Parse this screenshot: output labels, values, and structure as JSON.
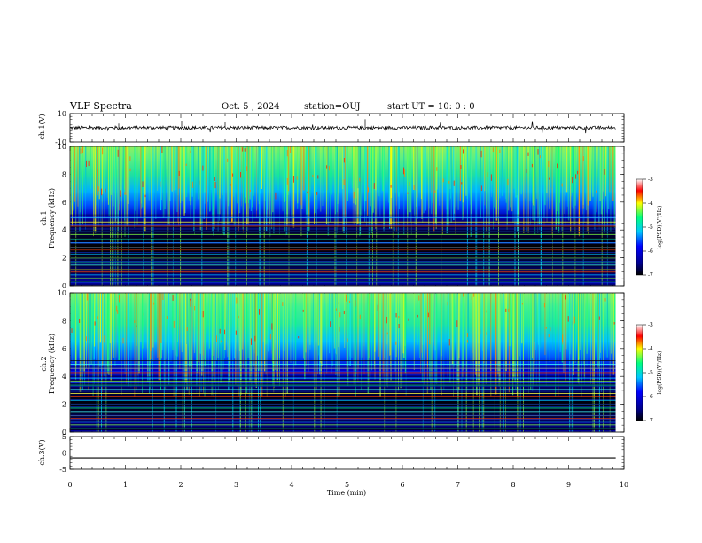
{
  "header": {
    "title": "VLF Spectra",
    "date": "Oct. 5  , 2024",
    "station": "station=OUJ",
    "start": "start  UT  =   10: 0  : 0"
  },
  "colors": {
    "background_low": "#000000",
    "low": "#00008b",
    "mid": "#0000ff",
    "cyan": "#00c8ff",
    "green": "#00ff80",
    "yellow": "#ffff00",
    "red": "#ff0000"
  },
  "chart_data": [
    {
      "type": "line",
      "name": "ch1-waveform",
      "ylabel": "ch.1(V)",
      "yticks": [
        "10",
        "-10"
      ],
      "ylim": [
        -10,
        10
      ],
      "baseline": 0,
      "noise_amplitude": 1.2
    },
    {
      "type": "heatmap",
      "name": "ch1-spectrogram",
      "ylabel": "ch.1\nFrequency  (kHz)",
      "ylabel_lines": [
        "ch.1",
        "Frequency  (kHz)"
      ],
      "yticks": [
        "0",
        "2",
        "4",
        "6",
        "8",
        "10"
      ],
      "ylim": [
        0,
        10
      ],
      "colorbar": {
        "label": "log(PSD)(V²/Hz)",
        "ticks": [
          "-3",
          "-4",
          "-5",
          "-6",
          "-7"
        ],
        "range": [
          -7,
          -3
        ]
      }
    },
    {
      "type": "heatmap",
      "name": "ch2-spectrogram",
      "ylabel": "ch.2\nFrequency  (kHz)",
      "ylabel_lines": [
        "ch.2",
        "Frequency  (kHz)"
      ],
      "yticks": [
        "0",
        "2",
        "4",
        "6",
        "8",
        "10"
      ],
      "ylim": [
        0,
        10
      ],
      "colorbar": {
        "label": "log(PSD)(V²/Hz)",
        "ticks": [
          "-3",
          "-4",
          "-5",
          "-6",
          "-7"
        ],
        "range": [
          -7,
          -3
        ]
      }
    },
    {
      "type": "line",
      "name": "ch3-waveform",
      "ylabel": "ch.3(V)",
      "yticks": [
        "5",
        "0",
        "-5"
      ],
      "ylim": [
        -5,
        5
      ],
      "baseline": -1.5
    }
  ],
  "xaxis": {
    "label": "Time  (min)",
    "ticks": [
      "0",
      "1",
      "2",
      "3",
      "4",
      "5",
      "6",
      "7",
      "8",
      "9",
      "10"
    ],
    "xlim": [
      0,
      10
    ],
    "data_end": 9.85
  }
}
